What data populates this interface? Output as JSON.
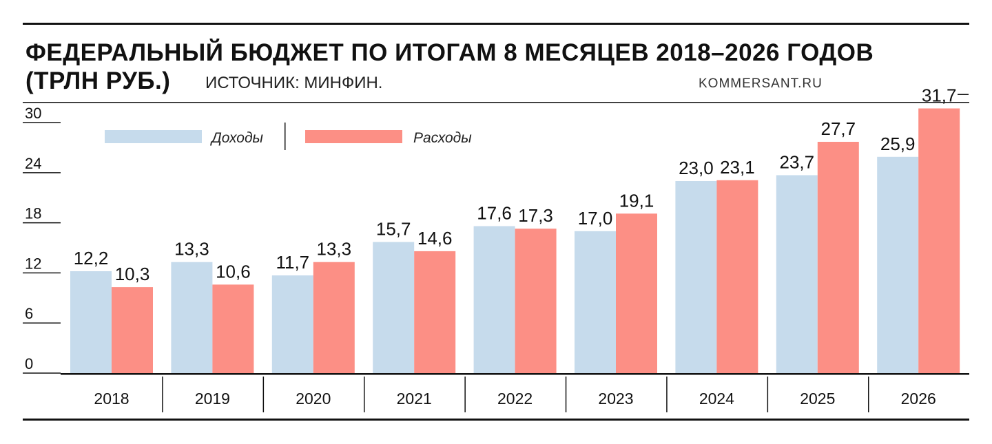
{
  "chart_data": {
    "type": "bar",
    "title_line1": "ФЕДЕРАЛЬНЫЙ БЮДЖЕТ ПО ИТОГАМ 8 МЕСЯЦЕВ 2018–2026 ГОДОВ",
    "title_line2": "(ТРЛН РУБ.)",
    "source": "ИСТОЧНИК: МИНФИН.",
    "brand": "KOMMERSANT.RU",
    "categories": [
      "2018",
      "2019",
      "2020",
      "2021",
      "2022",
      "2023",
      "2024",
      "2025",
      "2026"
    ],
    "series": [
      {
        "name": "Доходы",
        "color": "#c6dbec",
        "values": [
          12.2,
          13.3,
          11.7,
          15.7,
          17.6,
          17.0,
          23.0,
          23.7,
          25.9
        ],
        "labels": [
          "12,2",
          "13,3",
          "11,7",
          "15,7",
          "17,6",
          "17,0",
          "23,0",
          "23,7",
          "25,9"
        ]
      },
      {
        "name": "Расходы",
        "color": "#fc8f85",
        "values": [
          10.3,
          10.6,
          13.3,
          14.6,
          17.3,
          19.1,
          23.1,
          27.7,
          31.7
        ],
        "labels": [
          "10,3",
          "10,6",
          "13,3",
          "14,6",
          "17,3",
          "19,1",
          "23,1",
          "27,7",
          "31,7"
        ]
      }
    ],
    "yticks": [
      0,
      6,
      12,
      18,
      24,
      30
    ],
    "ylim": [
      0,
      33
    ],
    "grid": false,
    "legend_position": "top-left"
  }
}
